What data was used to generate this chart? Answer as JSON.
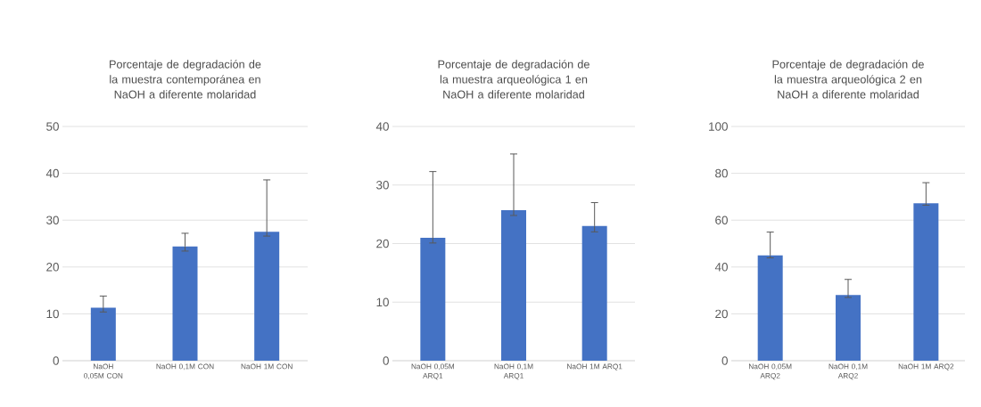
{
  "chart_data": [
    {
      "type": "bar",
      "title": "Porcentaje de degradación de la muestra contemporánea en NaOH a diferente molaridad",
      "categories": [
        "NaOH 0,05M CON",
        "NaOH 0,1M CON",
        "NaOH 1M CON"
      ],
      "values": [
        11.3,
        24.4,
        27.5
      ],
      "errors": [
        [
          10.4,
          13.8
        ],
        [
          23.4,
          27.2
        ],
        [
          26.6,
          38.6
        ]
      ],
      "color": "#4472c4",
      "ylim": [
        0,
        50
      ],
      "yticks": [
        0,
        10,
        20,
        30,
        40,
        50
      ],
      "grid": "y"
    },
    {
      "type": "bar",
      "title": "Porcentaje de degradación de la muestra arqueológica 1 en NaOH a diferente molaridad",
      "categories": [
        "NaOH 0,05M ARQ1",
        "NaOH 0,1M ARQ1",
        "NaOH 1M ARQ1"
      ],
      "values": [
        21.0,
        25.7,
        23.0
      ],
      "errors": [
        [
          20.1,
          32.3
        ],
        [
          24.8,
          35.3
        ],
        [
          22.0,
          27.0
        ]
      ],
      "color": "#4472c4",
      "ylim": [
        0,
        40
      ],
      "yticks": [
        0,
        10,
        20,
        30,
        40
      ],
      "grid": "y"
    },
    {
      "type": "bar",
      "title": "Porcentaje de degradación de la muestra arqueológica 2 en NaOH a diferente molaridad",
      "categories": [
        "NaOH 0,05M ARQ2",
        "NaOH 0,1M ARQ2",
        "NaOH 1M ARQ2"
      ],
      "values": [
        45.0,
        28.0,
        67.2
      ],
      "errors": [
        [
          43.9,
          54.9
        ],
        [
          27.0,
          34.7
        ],
        [
          66.4,
          76.0
        ]
      ],
      "color": "#4472c4",
      "ylim": [
        0,
        100
      ],
      "yticks": [
        0,
        20,
        40,
        60,
        80,
        100
      ],
      "grid": "y"
    }
  ]
}
